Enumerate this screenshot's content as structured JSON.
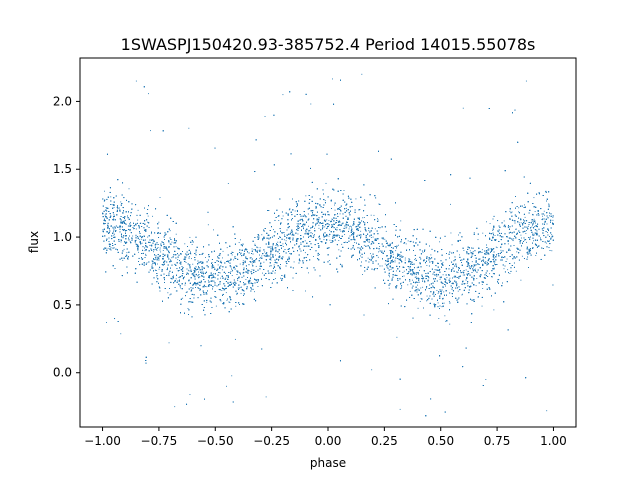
{
  "chart_data": {
    "type": "scatter",
    "title": "1SWASPJ150420.93-385752.4 Period 14015.55078s",
    "xlabel": "phase",
    "ylabel": "flux",
    "xlim": [
      -1.1,
      1.1
    ],
    "ylim": [
      -0.4,
      2.32
    ],
    "xticks": [
      -1.0,
      -0.75,
      -0.5,
      -0.25,
      0.0,
      0.25,
      0.5,
      0.75,
      1.0
    ],
    "xtick_labels": [
      "−1.00",
      "−0.75",
      "−0.50",
      "−0.25",
      "0.00",
      "0.25",
      "0.50",
      "0.75",
      "1.00"
    ],
    "yticks": [
      0.0,
      0.5,
      1.0,
      1.5,
      2.0
    ],
    "ytick_labels": [
      "0.0",
      "0.5",
      "1.0",
      "1.5",
      "2.0"
    ],
    "grid": false,
    "point_color": "#1f77b4",
    "series": [
      {
        "model": "sinusoid",
        "phase_range": [
          -1.0,
          1.0
        ],
        "mean_flux": 0.89,
        "amplitude": 0.19,
        "peak_phase": 0.0,
        "trough_phases": [
          -0.5,
          0.5
        ],
        "scatter_sigma": 0.13,
        "points": [
          [
            -0.95,
            1.05
          ],
          [
            -0.9,
            1.1
          ],
          [
            -0.8,
            1.0
          ],
          [
            -0.7,
            0.95
          ],
          [
            -0.6,
            0.8
          ],
          [
            -0.5,
            0.7
          ],
          [
            -0.4,
            0.75
          ],
          [
            -0.3,
            0.85
          ],
          [
            -0.2,
            0.95
          ],
          [
            -0.1,
            1.05
          ],
          [
            0.0,
            1.1
          ],
          [
            0.1,
            1.08
          ],
          [
            0.2,
            1.0
          ],
          [
            0.3,
            0.9
          ],
          [
            0.4,
            0.78
          ],
          [
            0.5,
            0.7
          ],
          [
            0.6,
            0.72
          ],
          [
            0.7,
            0.82
          ],
          [
            0.8,
            0.95
          ],
          [
            0.9,
            1.05
          ],
          [
            1.0,
            1.1
          ],
          [
            -0.85,
            2.15
          ],
          [
            0.15,
            2.2
          ],
          [
            0.88,
            2.15
          ],
          [
            -0.68,
            -0.25
          ],
          [
            0.32,
            -0.27
          ],
          [
            0.97,
            -0.28
          ],
          [
            -0.2,
            2.05
          ],
          [
            0.6,
            1.95
          ],
          [
            -0.45,
            -0.1
          ],
          [
            0.7,
            -0.05
          ]
        ]
      }
    ]
  }
}
